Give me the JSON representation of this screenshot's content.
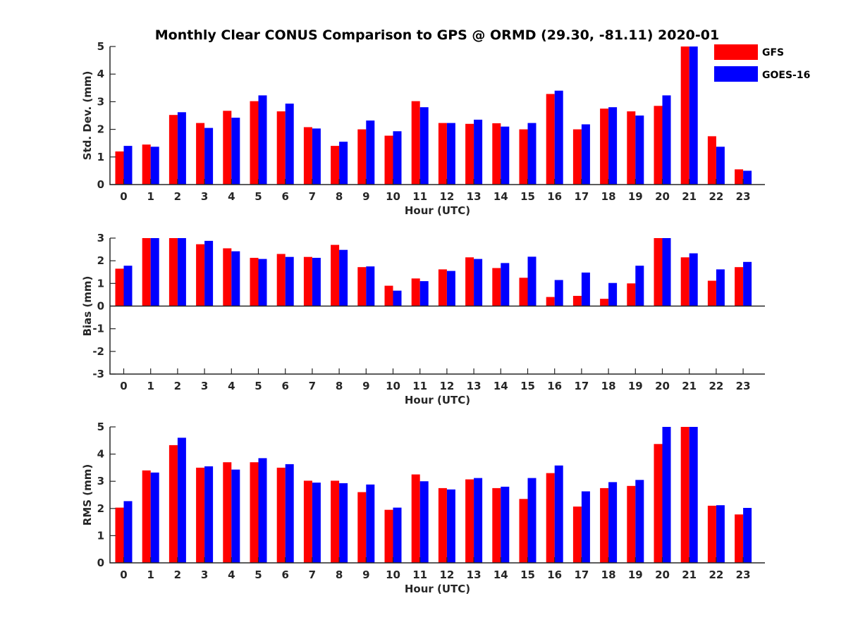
{
  "title": "Monthly Clear CONUS Comparison to GPS @ ORMD (29.30, -81.11) 2020-01",
  "legend": {
    "placement": "top-right",
    "entries": [
      {
        "name": "GFS",
        "color": "#ff0000"
      },
      {
        "name": "GOES-16",
        "color": "#0000ff"
      }
    ]
  },
  "chart_data": [
    {
      "type": "bar",
      "xlabel": "Hour (UTC)",
      "ylabel": "Std. Dev. (mm)",
      "ylim": [
        0,
        5
      ],
      "yticks": [
        "0",
        "1",
        "2",
        "3",
        "4",
        "5"
      ],
      "categories": [
        "0",
        "1",
        "2",
        "3",
        "4",
        "5",
        "6",
        "7",
        "8",
        "9",
        "10",
        "11",
        "12",
        "13",
        "14",
        "15",
        "16",
        "17",
        "18",
        "19",
        "20",
        "21",
        "22",
        "23"
      ],
      "series": [
        {
          "name": "GFS",
          "color": "#ff0000",
          "values": [
            1.2,
            1.45,
            2.52,
            2.23,
            2.67,
            3.02,
            2.65,
            2.08,
            1.4,
            2.0,
            1.77,
            3.02,
            2.23,
            2.2,
            2.22,
            2.0,
            3.28,
            2.0,
            2.75,
            2.65,
            2.85,
            5.0,
            1.75,
            0.55
          ]
        },
        {
          "name": "GOES-16",
          "color": "#0000ff",
          "values": [
            1.4,
            1.37,
            2.62,
            2.05,
            2.42,
            3.23,
            2.93,
            2.03,
            1.55,
            2.32,
            1.93,
            2.8,
            2.23,
            2.35,
            2.1,
            2.23,
            3.4,
            2.18,
            2.8,
            2.5,
            3.23,
            5.0,
            1.37,
            0.5
          ]
        }
      ]
    },
    {
      "type": "bar",
      "xlabel": "Hour (UTC)",
      "ylabel": "Bias (mm)",
      "ylim": [
        -3,
        3
      ],
      "yticks": [
        "-3",
        "-2",
        "-1",
        "0",
        "1",
        "2",
        "3"
      ],
      "categories": [
        "0",
        "1",
        "2",
        "3",
        "4",
        "5",
        "6",
        "7",
        "8",
        "9",
        "10",
        "11",
        "12",
        "13",
        "14",
        "15",
        "16",
        "17",
        "18",
        "19",
        "20",
        "21",
        "22",
        "23"
      ],
      "series": [
        {
          "name": "GFS",
          "color": "#ff0000",
          "values": [
            1.65,
            3.0,
            3.0,
            2.73,
            2.55,
            2.13,
            2.3,
            2.17,
            2.7,
            1.72,
            0.9,
            1.22,
            1.62,
            2.15,
            1.68,
            1.25,
            0.4,
            0.45,
            0.32,
            1.0,
            3.0,
            2.15,
            1.12,
            1.72
          ]
        },
        {
          "name": "GOES-16",
          "color": "#0000ff",
          "values": [
            1.78,
            3.0,
            3.0,
            2.88,
            2.42,
            2.08,
            2.17,
            2.13,
            2.48,
            1.75,
            0.68,
            1.1,
            1.55,
            2.08,
            1.9,
            2.18,
            1.15,
            1.48,
            1.02,
            1.78,
            3.0,
            2.33,
            1.62,
            1.95
          ]
        }
      ]
    },
    {
      "type": "bar",
      "xlabel": "Hour (UTC)",
      "ylabel": "RMS (mm)",
      "ylim": [
        0,
        5
      ],
      "yticks": [
        "0",
        "1",
        "2",
        "3",
        "4",
        "5"
      ],
      "categories": [
        "0",
        "1",
        "2",
        "3",
        "4",
        "5",
        "6",
        "7",
        "8",
        "9",
        "10",
        "11",
        "12",
        "13",
        "14",
        "15",
        "16",
        "17",
        "18",
        "19",
        "20",
        "21",
        "22",
        "23"
      ],
      "series": [
        {
          "name": "GFS",
          "color": "#ff0000",
          "values": [
            2.03,
            3.4,
            4.33,
            3.5,
            3.7,
            3.7,
            3.5,
            3.02,
            3.02,
            2.6,
            1.95,
            3.25,
            2.75,
            3.07,
            2.75,
            2.35,
            3.3,
            2.07,
            2.75,
            2.83,
            4.37,
            5.0,
            2.1,
            1.78
          ]
        },
        {
          "name": "GOES-16",
          "color": "#0000ff",
          "values": [
            2.27,
            3.32,
            4.6,
            3.55,
            3.43,
            3.85,
            3.63,
            2.95,
            2.93,
            2.88,
            2.03,
            3.0,
            2.7,
            3.12,
            2.8,
            3.12,
            3.58,
            2.63,
            2.97,
            3.05,
            5.0,
            5.0,
            2.12,
            2.02
          ]
        }
      ]
    }
  ]
}
